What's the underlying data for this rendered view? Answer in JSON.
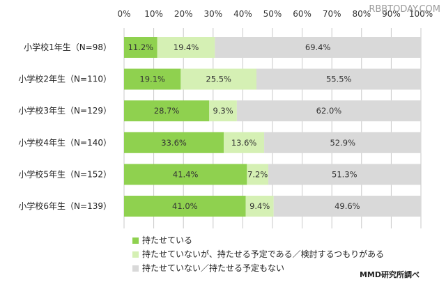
{
  "chart_data": {
    "type": "bar",
    "orientation": "horizontal",
    "stacked": true,
    "categories": [
      "小学校1年生（N=98）",
      "小学校2年生（N=110）",
      "小学校3年生（N=129）",
      "小学校4年生（N=140）",
      "小学校5年生（N=152）",
      "小学校6年生（N=139）"
    ],
    "series": [
      {
        "name": "持たせている",
        "values": [
          11.2,
          19.1,
          28.7,
          33.6,
          41.4,
          41.0
        ],
        "labels": [
          "11.2%",
          "19.1%",
          "28.7%",
          "33.6%",
          "41.4%",
          "41.0%"
        ],
        "color": "#8fd14f"
      },
      {
        "name": "持たせていないが、持たせる予定である／検討するつもりがある",
        "values": [
          19.4,
          25.5,
          9.3,
          13.6,
          7.2,
          9.4
        ],
        "labels": [
          "19.4%",
          "25.5%",
          "9.3%",
          "13.6%",
          "7.2%",
          "9.4%"
        ],
        "color": "#d5f0b4"
      },
      {
        "name": "持たせていない／持たせる予定もない",
        "values": [
          69.4,
          55.5,
          62.0,
          52.9,
          51.3,
          49.6
        ],
        "labels": [
          "69.4%",
          "55.5%",
          "62.0%",
          "52.9%",
          "51.3%",
          "49.6%"
        ],
        "color": "#d9d9d9"
      }
    ],
    "x_ticks": [
      "0%",
      "10%",
      "20%",
      "30%",
      "40%",
      "50%",
      "60%",
      "70%",
      "80%",
      "90%",
      "100%"
    ],
    "xlim": [
      0,
      100
    ],
    "grid": true,
    "legend_position": "bottom-left",
    "credit": "MMD研究所調べ"
  },
  "watermark": "RBBTODAY.COM"
}
